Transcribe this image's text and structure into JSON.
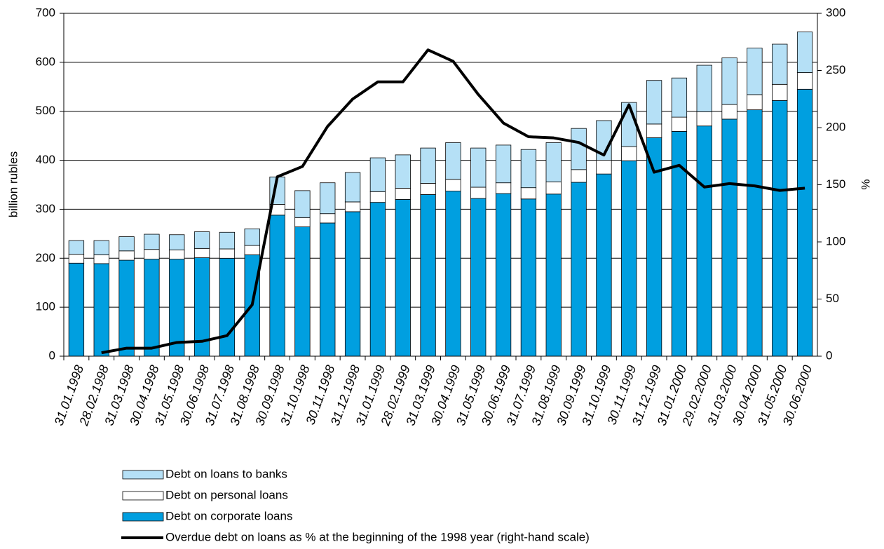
{
  "chart_data": {
    "type": "bar",
    "stacked": true,
    "y_label": "billion rubles",
    "y2_label": "%",
    "categories": [
      "31.01.1998",
      "28.02.1998",
      "31.03.1998",
      "30.04.1998",
      "31.05.1998",
      "30.06.1998",
      "31.07.1998",
      "31.08.1998",
      "30.09.1998",
      "31.10.1998",
      "30.11.1998",
      "31.12.1998",
      "31.01.1999",
      "28.02.1999",
      "31.03.1999",
      "30.04.1999",
      "31.05.1999",
      "30.06.1999",
      "31.07.1999",
      "31.08.1999",
      "30.09.1999",
      "31.10.1999",
      "30.11.1999",
      "31.12.1999",
      "31.01.2000",
      "29.02.2000",
      "31.03.2000",
      "30.04.2000",
      "31.05.2000",
      "30.06.2000"
    ],
    "series": [
      {
        "name": "Debt on corporate loans",
        "color": "#009fe0",
        "values": [
          190,
          189,
          196,
          198,
          198,
          201,
          200,
          207,
          288,
          264,
          272,
          295,
          314,
          320,
          330,
          337,
          322,
          332,
          321,
          331,
          355,
          372,
          399,
          446,
          459,
          470,
          484,
          503,
          522,
          545
        ]
      },
      {
        "name": "Debt on personal loans",
        "color": "#ffffff",
        "values": [
          18,
          18,
          19,
          20,
          19,
          19,
          19,
          19,
          22,
          19,
          19,
          20,
          22,
          23,
          23,
          24,
          23,
          22,
          23,
          25,
          26,
          28,
          29,
          28,
          29,
          29,
          30,
          31,
          33,
          34
        ]
      },
      {
        "name": "Debt on loans to banks",
        "color": "#b5e0f6",
        "values": [
          28,
          29,
          29,
          31,
          31,
          34,
          34,
          34,
          56,
          55,
          63,
          60,
          69,
          68,
          72,
          75,
          80,
          77,
          78,
          80,
          84,
          81,
          90,
          89,
          80,
          95,
          95,
          95,
          82,
          83
        ]
      },
      {
        "name": "Overdue debt on loans as % at the beginning of the 1998 year (right-hand scale)",
        "type": "line",
        "axis": "y2",
        "color": "#000000",
        "values": [
          null,
          3,
          7,
          7,
          12,
          13,
          18,
          45,
          157,
          166,
          201,
          225,
          240,
          240,
          268,
          258,
          229,
          204,
          192,
          191,
          187,
          176,
          220,
          161,
          167,
          148,
          151,
          149,
          145,
          147
        ]
      }
    ],
    "ylim": [
      0,
      700
    ],
    "yticks": [
      0,
      100,
      200,
      300,
      400,
      500,
      600,
      700
    ],
    "y2lim": [
      0,
      300
    ],
    "y2ticks": [
      0,
      50,
      100,
      150,
      200,
      250,
      300
    ],
    "grid": true
  }
}
